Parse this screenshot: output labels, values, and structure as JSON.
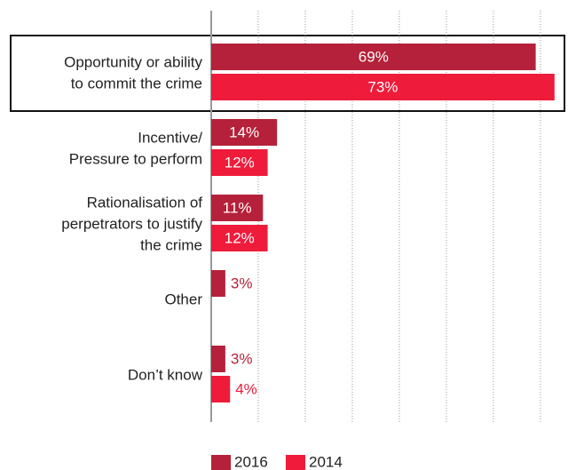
{
  "chart_data": {
    "type": "bar",
    "orientation": "horizontal",
    "categories": [
      [
        "Opportunity or ability",
        "to commit the crime"
      ],
      [
        "Incentive/",
        "Pressure to perform"
      ],
      [
        "Rationalisation of",
        "perpetrators to justify",
        "the crime"
      ],
      [
        "Other"
      ],
      [
        "Don’t know"
      ]
    ],
    "series": [
      {
        "name": "2016",
        "color": "#b5213a",
        "values": [
          69,
          14,
          11,
          3,
          3
        ],
        "value_labels": [
          "69%",
          "14%",
          "11%",
          "3%",
          "3%"
        ]
      },
      {
        "name": "2014",
        "color": "#ee1b3a",
        "values": [
          73,
          12,
          12,
          null,
          4
        ],
        "value_labels": [
          "73%",
          "12%",
          "12%",
          null,
          "4%"
        ]
      }
    ],
    "xlim": [
      0,
      77
    ],
    "xticks": [
      10,
      20,
      30,
      40,
      50,
      60,
      70
    ],
    "grid": true,
    "legend": "bottom"
  }
}
